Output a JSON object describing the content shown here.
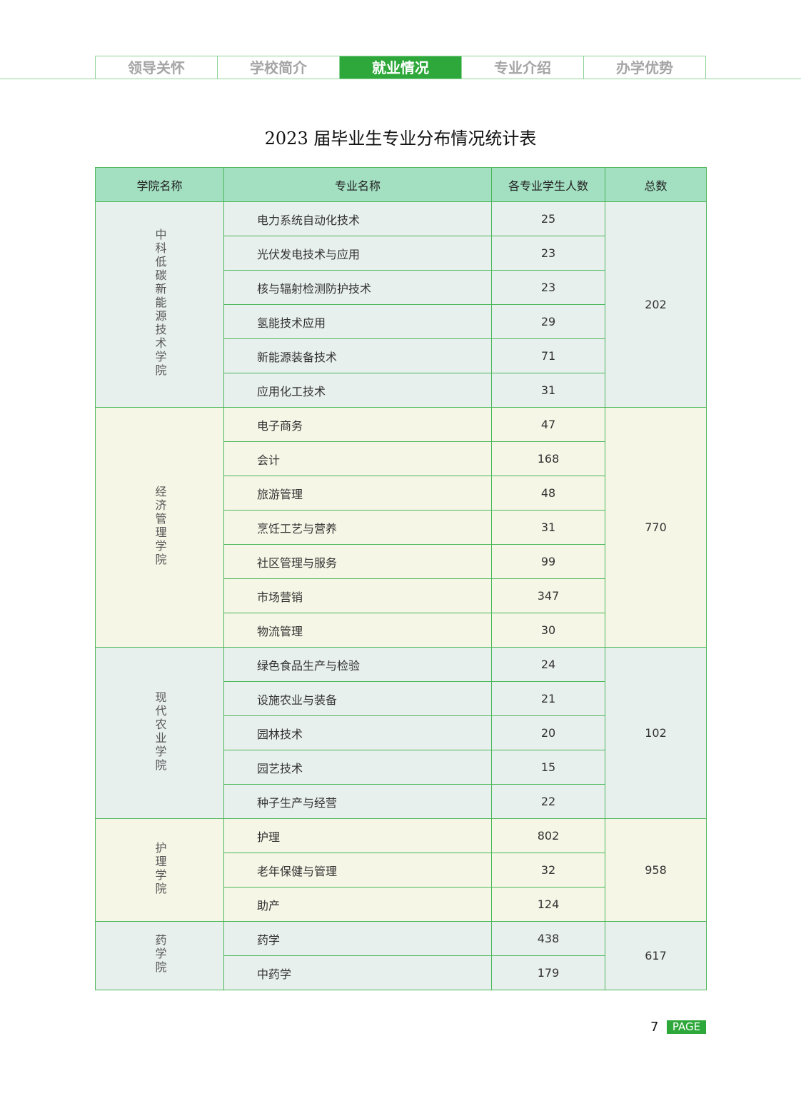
{
  "nav": {
    "tabs": [
      "领导关怀",
      "学校简介",
      "就业情况",
      "专业介绍",
      "办学优势"
    ],
    "active": 2
  },
  "title": "2023 届毕业生专业分布情况统计表",
  "table": {
    "headers": [
      "学院名称",
      "专业名称",
      "各专业学生人数",
      "总数"
    ],
    "groups": [
      {
        "college": "中科低碳新能源技术学院",
        "total": "202",
        "majors": [
          [
            "电力系统自动化技术",
            "25"
          ],
          [
            "光伏发电技术与应用",
            "23"
          ],
          [
            "核与辐射检测防护技术",
            "23"
          ],
          [
            "氢能技术应用",
            "29"
          ],
          [
            "新能源装备技术",
            "71"
          ],
          [
            "应用化工技术",
            "31"
          ]
        ]
      },
      {
        "college": "经济管理学院",
        "total": "770",
        "majors": [
          [
            "电子商务",
            "47"
          ],
          [
            "会计",
            "168"
          ],
          [
            "旅游管理",
            "48"
          ],
          [
            "烹饪工艺与营养",
            "31"
          ],
          [
            "社区管理与服务",
            "99"
          ],
          [
            "市场营销",
            "347"
          ],
          [
            "物流管理",
            "30"
          ]
        ]
      },
      {
        "college": "现代农业学院",
        "total": "102",
        "majors": [
          [
            "绿色食品生产与检验",
            "24"
          ],
          [
            "设施农业与装备",
            "21"
          ],
          [
            "园林技术",
            "20"
          ],
          [
            "园艺技术",
            "15"
          ],
          [
            "种子生产与经营",
            "22"
          ]
        ]
      },
      {
        "college": "护理学院",
        "total": "958",
        "majors": [
          [
            "护理",
            "802"
          ],
          [
            "老年保健与管理",
            "32"
          ],
          [
            "助产",
            "124"
          ]
        ]
      },
      {
        "college": "药学院",
        "total": "617",
        "majors": [
          [
            "药学",
            "438"
          ],
          [
            "中药学",
            "179"
          ]
        ]
      }
    ]
  },
  "footer": {
    "page_number": "7",
    "page_label": "PAGE"
  },
  "colors": {
    "accent": "#2ea83a",
    "header_bg": "#a3dfc1",
    "band_a": "#e8f0ee",
    "band_b": "#f5f6e6"
  }
}
